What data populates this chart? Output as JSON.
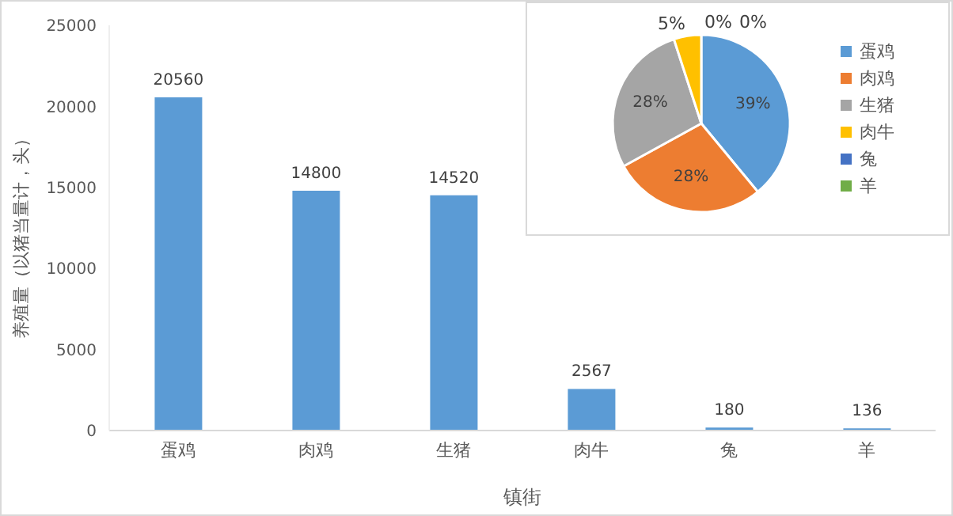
{
  "chart_data": [
    {
      "type": "bar",
      "xlabel": "镇街",
      "ylabel": "养殖量（以猪当量计，头）",
      "categories": [
        "蛋鸡",
        "肉鸡",
        "生猪",
        "肉牛",
        "兔",
        "羊"
      ],
      "values": [
        20560,
        14800,
        14520,
        2567,
        180,
        136
      ],
      "color": "#5b9bd5",
      "ylim": [
        0,
        25000
      ],
      "yticks": [
        0,
        5000,
        10000,
        15000,
        20000,
        25000
      ],
      "data_labels": true,
      "grid": false
    },
    {
      "type": "pie",
      "categories": [
        "蛋鸡",
        "肉鸡",
        "生猪",
        "肉牛",
        "兔",
        "羊"
      ],
      "values": [
        39,
        28,
        28,
        5,
        0,
        0
      ],
      "value_labels": [
        "39%",
        "28%",
        "28%",
        "5%",
        "0%",
        "0%"
      ],
      "colors": [
        "#5b9bd5",
        "#ed7d31",
        "#a5a5a5",
        "#ffc000",
        "#4472c4",
        "#70ad47"
      ],
      "legend": "right"
    }
  ]
}
